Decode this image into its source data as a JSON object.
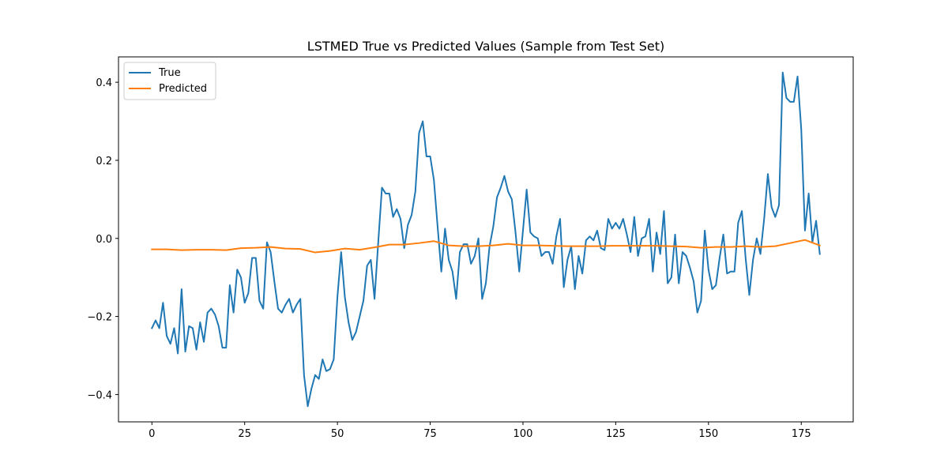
{
  "chart_data": {
    "type": "line",
    "title": "LSTMED True vs Predicted Values (Sample from Test Set)",
    "xlabel": "",
    "ylabel": "",
    "xlim": [
      -9,
      189
    ],
    "ylim": [
      -0.47,
      0.465
    ],
    "xticks": [
      0,
      25,
      50,
      75,
      100,
      125,
      150,
      175
    ],
    "yticks": [
      -0.4,
      -0.2,
      0.0,
      0.2,
      0.4
    ],
    "ytick_labels": [
      "−0.4",
      "−0.2",
      "0.0",
      "0.2",
      "0.4"
    ],
    "grid": false,
    "legend": "top-left",
    "series": [
      {
        "name": "True",
        "color": "#1f77b4",
        "x": [
          0,
          1,
          2,
          3,
          4,
          5,
          6,
          7,
          8,
          9,
          10,
          11,
          12,
          13,
          14,
          15,
          16,
          17,
          18,
          19,
          20,
          21,
          22,
          23,
          24,
          25,
          26,
          27,
          28,
          29,
          30,
          31,
          32,
          33,
          34,
          35,
          36,
          37,
          38,
          39,
          40,
          41,
          42,
          43,
          44,
          45,
          46,
          47,
          48,
          49,
          50,
          51,
          52,
          53,
          54,
          55,
          56,
          57,
          58,
          59,
          60,
          61,
          62,
          63,
          64,
          65,
          66,
          67,
          68,
          69,
          70,
          71,
          72,
          73,
          74,
          75,
          76,
          77,
          78,
          79,
          80,
          81,
          82,
          83,
          84,
          85,
          86,
          87,
          88,
          89,
          90,
          91,
          92,
          93,
          94,
          95,
          96,
          97,
          98,
          99,
          100,
          101,
          102,
          103,
          104,
          105,
          106,
          107,
          108,
          109,
          110,
          111,
          112,
          113,
          114,
          115,
          116,
          117,
          118,
          119,
          120,
          121,
          122,
          123,
          124,
          125,
          126,
          127,
          128,
          129,
          130,
          131,
          132,
          133,
          134,
          135,
          136,
          137,
          138,
          139,
          140,
          141,
          142,
          143,
          144,
          145,
          146,
          147,
          148,
          149,
          150,
          151,
          152,
          153,
          154,
          155,
          156,
          157,
          158,
          159,
          160,
          161,
          162,
          163,
          164,
          165,
          166,
          167,
          168,
          169,
          170,
          171,
          172,
          173,
          174,
          175,
          176,
          177,
          178,
          179,
          180
        ],
        "values": [
          -0.23,
          -0.21,
          -0.23,
          -0.165,
          -0.25,
          -0.27,
          -0.23,
          -0.295,
          -0.13,
          -0.29,
          -0.225,
          -0.23,
          -0.285,
          -0.215,
          -0.265,
          -0.19,
          -0.18,
          -0.195,
          -0.225,
          -0.28,
          -0.28,
          -0.12,
          -0.19,
          -0.08,
          -0.1,
          -0.165,
          -0.14,
          -0.05,
          -0.05,
          -0.16,
          -0.18,
          -0.01,
          -0.035,
          -0.11,
          -0.18,
          -0.19,
          -0.17,
          -0.155,
          -0.19,
          -0.17,
          -0.155,
          -0.35,
          -0.43,
          -0.385,
          -0.35,
          -0.36,
          -0.31,
          -0.34,
          -0.335,
          -0.31,
          -0.15,
          -0.035,
          -0.15,
          -0.215,
          -0.26,
          -0.24,
          -0.2,
          -0.16,
          -0.07,
          -0.055,
          -0.155,
          -0.01,
          0.13,
          0.115,
          0.115,
          0.055,
          0.075,
          0.05,
          -0.025,
          0.035,
          0.06,
          0.12,
          0.27,
          0.3,
          0.21,
          0.21,
          0.15,
          0.03,
          -0.085,
          0.025,
          -0.055,
          -0.085,
          -0.155,
          -0.035,
          -0.015,
          -0.015,
          -0.065,
          -0.045,
          0.0,
          -0.155,
          -0.115,
          -0.02,
          0.03,
          0.105,
          0.13,
          0.16,
          0.12,
          0.1,
          0.015,
          -0.085,
          0.02,
          0.125,
          0.015,
          0.005,
          0.0,
          -0.045,
          -0.035,
          -0.035,
          -0.065,
          0.005,
          0.05,
          -0.125,
          -0.055,
          -0.02,
          -0.13,
          -0.045,
          -0.09,
          -0.005,
          0.005,
          -0.005,
          0.02,
          -0.025,
          -0.03,
          0.05,
          0.025,
          0.04,
          0.025,
          0.05,
          0.01,
          -0.035,
          0.055,
          -0.045,
          0.0,
          0.005,
          0.05,
          -0.085,
          0.015,
          -0.04,
          0.07,
          -0.115,
          -0.1,
          0.01,
          -0.115,
          -0.035,
          -0.045,
          -0.075,
          -0.11,
          -0.19,
          -0.16,
          0.02,
          -0.08,
          -0.13,
          -0.12,
          -0.05,
          0.01,
          -0.09,
          -0.085,
          -0.085,
          0.04,
          0.07,
          -0.05,
          -0.145,
          -0.055,
          0.0,
          -0.04,
          0.05,
          0.165,
          0.08,
          0.055,
          0.085,
          0.425,
          0.36,
          0.35,
          0.35,
          0.415,
          0.28,
          0.02,
          0.115,
          -0.01,
          0.045,
          -0.04
        ]
      },
      {
        "name": "Predicted",
        "color": "#ff7f0e",
        "x": [
          0,
          4,
          8,
          12,
          16,
          20,
          24,
          28,
          32,
          36,
          40,
          44,
          48,
          52,
          56,
          60,
          64,
          68,
          72,
          76,
          80,
          84,
          88,
          92,
          96,
          100,
          104,
          108,
          112,
          116,
          120,
          124,
          128,
          132,
          136,
          140,
          144,
          148,
          152,
          156,
          160,
          164,
          168,
          172,
          176,
          180
        ],
        "values": [
          -0.028,
          -0.028,
          -0.03,
          -0.029,
          -0.029,
          -0.03,
          -0.025,
          -0.024,
          -0.022,
          -0.026,
          -0.027,
          -0.036,
          -0.032,
          -0.026,
          -0.029,
          -0.023,
          -0.016,
          -0.016,
          -0.012,
          -0.007,
          -0.018,
          -0.02,
          -0.02,
          -0.018,
          -0.014,
          -0.018,
          -0.018,
          -0.019,
          -0.02,
          -0.02,
          -0.02,
          -0.019,
          -0.019,
          -0.019,
          -0.019,
          -0.02,
          -0.021,
          -0.024,
          -0.022,
          -0.022,
          -0.02,
          -0.022,
          -0.02,
          -0.012,
          -0.004,
          -0.018
        ]
      }
    ]
  }
}
